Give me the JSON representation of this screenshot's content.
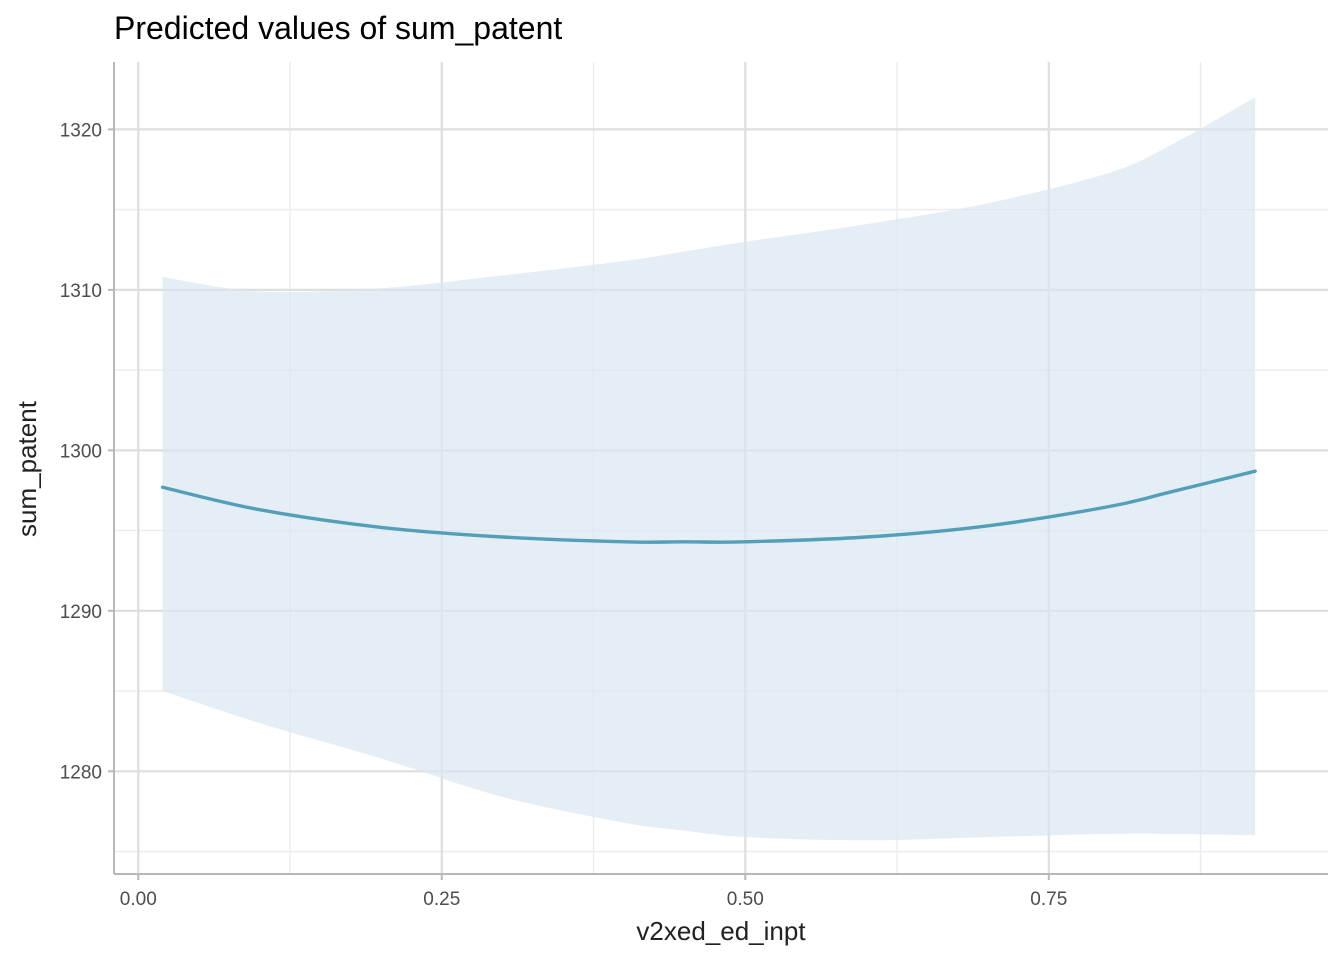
{
  "chart_data": {
    "type": "line",
    "title": "Predicted values of sum_patent",
    "xlabel": "v2xed_ed_inpt",
    "ylabel": "sum_patent",
    "xlim": [
      -0.02,
      0.98
    ],
    "ylim": [
      1273.6,
      1324.2
    ],
    "x_ticks": [
      0.0,
      0.25,
      0.5,
      0.75
    ],
    "x_tick_labels": [
      "0.00",
      "0.25",
      "0.50",
      "0.75"
    ],
    "y_ticks": [
      1280,
      1290,
      1300,
      1310,
      1320
    ],
    "y_tick_labels": [
      "1280",
      "1290",
      "1300",
      "1310",
      "1320"
    ],
    "grid": true,
    "legend": "none",
    "series": [
      {
        "x": [
          0.02,
          0.1,
          0.2,
          0.3,
          0.4,
          0.45,
          0.5,
          0.6,
          0.7,
          0.8,
          0.85,
          0.92
        ],
        "y": [
          1297.7,
          1296.3,
          1295.2,
          1294.6,
          1294.3,
          1294.3,
          1294.3,
          1294.6,
          1295.3,
          1296.5,
          1297.4,
          1298.7
        ],
        "lower": [
          1285.0,
          1283.0,
          1280.8,
          1278.4,
          1276.8,
          1276.3,
          1275.9,
          1275.7,
          1275.9,
          1276.1,
          1276.1,
          1276.0
        ],
        "upper": [
          1310.8,
          1309.9,
          1310.1,
          1310.9,
          1311.8,
          1312.4,
          1313.0,
          1314.1,
          1315.4,
          1317.3,
          1319.0,
          1322.0
        ],
        "color": "#539fb9",
        "band_color": "#d9e7ef"
      }
    ]
  }
}
